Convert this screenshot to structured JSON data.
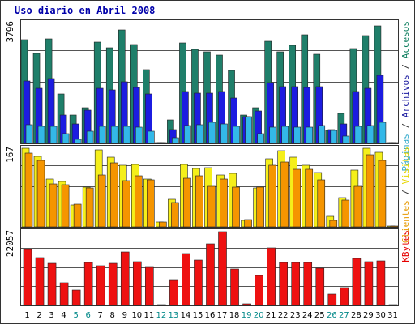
{
  "chart_data": {
    "type": "bar",
    "title": "Uso diario en Abril 2008",
    "categories": [
      "1",
      "2",
      "3",
      "4",
      "5",
      "6",
      "7",
      "8",
      "9",
      "10",
      "11",
      "12",
      "13",
      "14",
      "15",
      "16",
      "17",
      "18",
      "19",
      "20",
      "21",
      "22",
      "23",
      "24",
      "25",
      "26",
      "27",
      "28",
      "29",
      "30",
      "31"
    ],
    "weekend_days": [
      "5",
      "6",
      "12",
      "13",
      "19",
      "20",
      "26",
      "27"
    ],
    "panels": [
      {
        "id": "top",
        "max_label": "3796",
        "ymax": 3796,
        "right_label": [
          {
            "text": "Páginas",
            "color": "#33aacc"
          },
          {
            "text": " / ",
            "color": "#333333"
          },
          {
            "text": "Archivos",
            "color": "#1a1aa0"
          },
          {
            "text": " / ",
            "color": "#333333"
          },
          {
            "text": "Accesos",
            "color": "#0f7f5f"
          }
        ],
        "series": [
          {
            "name": "Accesos",
            "color": "#1f7f6a",
            "values": [
              3250,
              2830,
              3290,
              1550,
              880,
              1120,
              3190,
              3010,
              3560,
              3110,
              2320,
              0,
              740,
              3160,
              2950,
              2870,
              2780,
              2300,
              880,
              1130,
              3200,
              2890,
              3090,
              3420,
              2800,
              410,
              940,
              2980,
              3390,
              3690,
              0
            ]
          },
          {
            "name": "Archivos",
            "color": "#1c1ce0",
            "values": [
              1950,
              1730,
              2050,
              880,
              610,
              1040,
              1720,
              1690,
              1930,
              1760,
              1560,
              0,
              440,
              1640,
              1590,
              1580,
              1620,
              1420,
              840,
              1020,
              1910,
              1780,
              1780,
              1770,
              1780,
              440,
              620,
              1620,
              1720,
              2150,
              0
            ]
          },
          {
            "name": "Páginas",
            "color": "#33b8e8",
            "values": [
              580,
              530,
              530,
              310,
              140,
              370,
              530,
              540,
              530,
              520,
              390,
              0,
              190,
              570,
              580,
              650,
              610,
              530,
              840,
              300,
              510,
              530,
              520,
              520,
              550,
              420,
              220,
              530,
              570,
              660,
              0
            ]
          }
        ]
      },
      {
        "id": "mid",
        "max_label": "167",
        "ymax": 167,
        "right_label": [
          {
            "text": "Clientes",
            "color": "#e69900"
          },
          {
            "text": " / ",
            "color": "#333333"
          },
          {
            "text": "Visitas",
            "color": "#e6d600"
          }
        ],
        "series": [
          {
            "name": "Visitas",
            "color": "#f5ef1a",
            "values": [
              167,
              150,
              101,
              96,
              47,
              85,
              164,
              148,
              130,
              133,
              101,
              10,
              58,
              132,
              124,
              126,
              111,
              113,
              13,
              83,
              145,
              161,
              148,
              131,
              115,
              22,
              62,
              120,
              167,
              159,
              0
            ]
          },
          {
            "name": "Clientes",
            "color": "#f59500",
            "values": [
              156,
              141,
              92,
              89,
              48,
              83,
              111,
              136,
              98,
              109,
              100,
              10,
              52,
              104,
              109,
              86,
              101,
              84,
              15,
              85,
              131,
              138,
              123,
              122,
              100,
              14,
              56,
              86,
              154,
              141,
              0
            ]
          }
        ]
      },
      {
        "id": "bot",
        "max_label": "22057",
        "ymax": 22057,
        "right_label": [
          {
            "text": "KBytes",
            "color": "#e60000"
          }
        ],
        "series": [
          {
            "name": "KBytes",
            "color": "#ee1111",
            "values": [
              16820,
              14180,
              12570,
              6720,
              4490,
              12960,
              11960,
              12700,
              15930,
              13060,
              11450,
              0,
              7510,
              15470,
              13590,
              18520,
              22050,
              10930,
              580,
              9030,
              17120,
              12960,
              12750,
              12960,
              11040,
              3400,
              5400,
              13960,
              13000,
              13380,
              0
            ]
          }
        ]
      }
    ]
  }
}
